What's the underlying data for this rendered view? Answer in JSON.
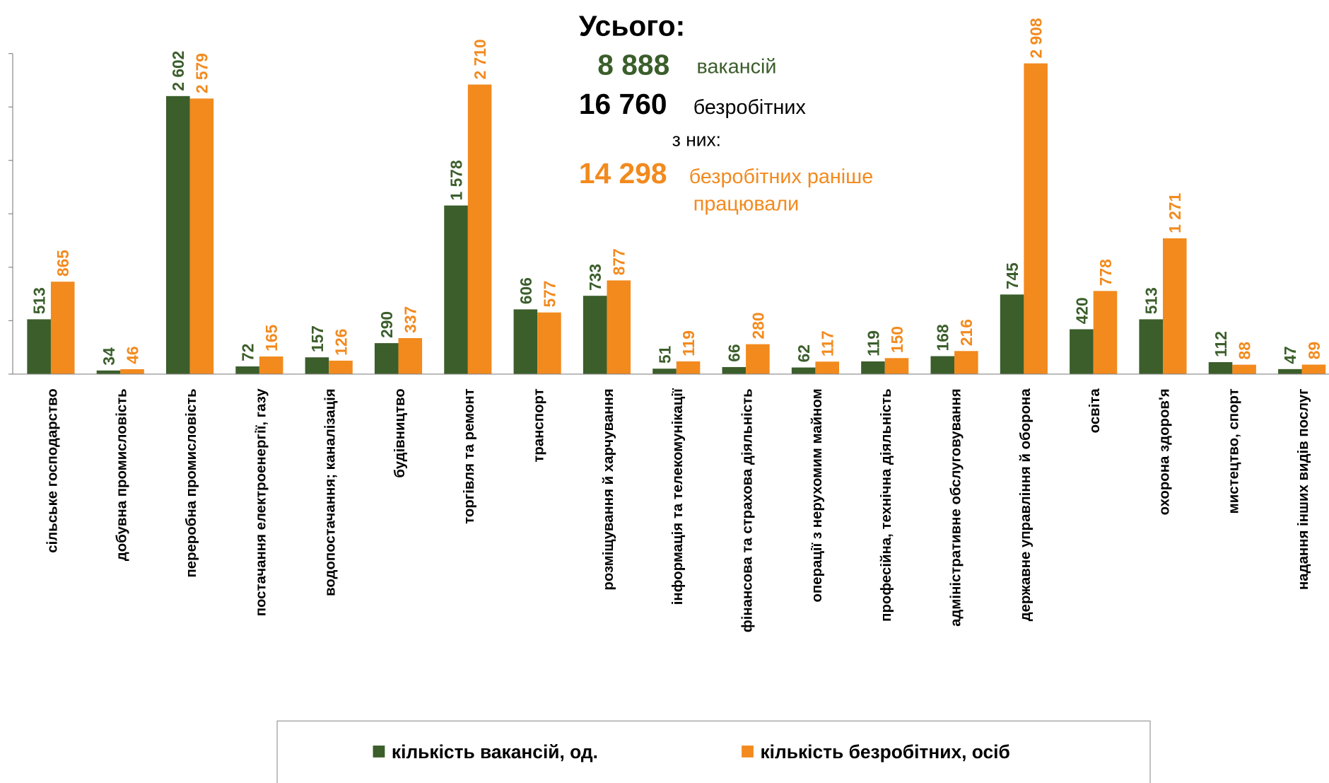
{
  "chart_data": {
    "type": "bar",
    "categories": [
      "сільське господарство",
      "добувна промисловість",
      "переробна промисловість",
      "постачання електроенергії, газу",
      "водопостачання; каналізація",
      "будівництво",
      "торгівля та ремонт",
      "транспорт",
      "розміщування й харчування",
      "інформація та телекомунікації",
      "фінансова та страхова діяльність",
      "операції з нерухомим майном",
      "професійна, технічна діяльність",
      "адміністративне обслуговування",
      "державне управління й оборона",
      "освіта",
      "охорона здоров'я",
      "мистецтво, спорт",
      "надання інших видів послуг"
    ],
    "series": [
      {
        "name": "кількість вакансій, од.",
        "color": "#3b5e2b",
        "values": [
          513,
          34,
          2602,
          72,
          157,
          290,
          1578,
          606,
          733,
          51,
          66,
          62,
          119,
          168,
          745,
          420,
          513,
          112,
          47
        ],
        "value_labels": [
          "513",
          "34",
          "2 602",
          "72",
          "157",
          "290",
          "1 578",
          "606",
          "733",
          "51",
          "66",
          "62",
          "119",
          "168",
          "745",
          "420",
          "513",
          "112",
          "47"
        ]
      },
      {
        "name": "кількість безробітних, осіб",
        "color": "#f28a1e",
        "values": [
          865,
          46,
          2579,
          165,
          126,
          337,
          2710,
          577,
          877,
          119,
          280,
          117,
          150,
          216,
          2908,
          778,
          1271,
          88,
          89
        ],
        "value_labels": [
          "865",
          "46",
          "2 579",
          "165",
          "126",
          "337",
          "2 710",
          "577",
          "877",
          "119",
          "280",
          "117",
          "150",
          "216",
          "2 908",
          "778",
          "1 271",
          "88",
          "89"
        ]
      }
    ],
    "ylim": [
      0,
      3000
    ],
    "yticks": [
      0,
      500,
      1000,
      1500,
      2000,
      2500,
      3000
    ],
    "summary": {
      "title": "Усього:",
      "vacancies": "8 888",
      "vacancies_text": "вакансій",
      "unemployed": "16 760",
      "unemployed_text": "безробітних",
      "of_them": "з них:",
      "worked": "14 298",
      "worked_text_1": "безробітних раніше",
      "worked_text_2": "працювали"
    }
  }
}
